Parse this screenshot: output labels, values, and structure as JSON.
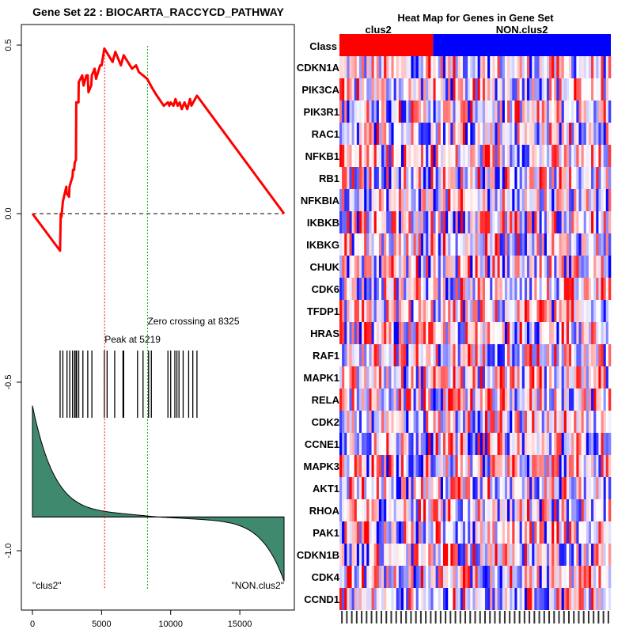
{
  "chart_data": [
    {
      "type": "line",
      "title": "Gene Set  22 : BIOCARTA_RACCYCD_PATHWAY",
      "xlim": [
        0,
        18500
      ],
      "ylim": [
        -1.07,
        0.53
      ],
      "x_ticks": [
        0,
        5000,
        10000,
        15000
      ],
      "x_tick_labels": [
        "0",
        "5000",
        "10000",
        "15000"
      ],
      "y_ticks": [
        0.5,
        0.0,
        -0.5,
        -1.0
      ],
      "y_tick_labels": [
        "0.5",
        "0.0",
        "-0.5",
        "-1.0"
      ],
      "colors": {
        "enrichment": "#ff0000",
        "peak_line": "#ff0000",
        "zero_line": "#00bb00",
        "ranked_fill": "#3f8a6e",
        "hits": "#000000",
        "baseline": "#000000"
      },
      "peak": {
        "x": 5219,
        "label": "Peak at 5219"
      },
      "zero_crossing": {
        "x": 8325,
        "label": "Zero crossing at 8325"
      },
      "hits_x": [
        2000,
        2200,
        2500,
        2700,
        2900,
        3050,
        3150,
        3200,
        3350,
        3650,
        4000,
        4300,
        5200,
        5400,
        5950,
        6550,
        6600,
        7600,
        8000,
        8400,
        8600,
        9800,
        10000,
        10300,
        10450,
        10600,
        10900,
        11300,
        11600,
        11900
      ],
      "enrichment_points": [
        [
          0,
          0.0
        ],
        [
          2000,
          -0.11
        ],
        [
          2050,
          0.0
        ],
        [
          2100,
          -0.01
        ],
        [
          2200,
          0.035
        ],
        [
          2450,
          0.08
        ],
        [
          2480,
          0.06
        ],
        [
          2650,
          0.05
        ],
        [
          2680,
          0.08
        ],
        [
          2900,
          0.11
        ],
        [
          2930,
          0.13
        ],
        [
          3020,
          0.13
        ],
        [
          3050,
          0.15
        ],
        [
          3150,
          0.16
        ],
        [
          3170,
          0.33
        ],
        [
          3330,
          0.33
        ],
        [
          3350,
          0.39
        ],
        [
          3600,
          0.41
        ],
        [
          3700,
          0.38
        ],
        [
          3900,
          0.41
        ],
        [
          4000,
          0.41
        ],
        [
          4050,
          0.36
        ],
        [
          4250,
          0.38
        ],
        [
          4300,
          0.41
        ],
        [
          4500,
          0.43
        ],
        [
          4600,
          0.4
        ],
        [
          4900,
          0.44
        ],
        [
          5000,
          0.44
        ],
        [
          5200,
          0.49
        ],
        [
          5500,
          0.47
        ],
        [
          5800,
          0.45
        ],
        [
          6000,
          0.48
        ],
        [
          6200,
          0.46
        ],
        [
          6400,
          0.44
        ],
        [
          6600,
          0.47
        ],
        [
          6900,
          0.45
        ],
        [
          7200,
          0.43
        ],
        [
          7500,
          0.44
        ],
        [
          7700,
          0.42
        ],
        [
          8000,
          0.41
        ],
        [
          8300,
          0.4
        ],
        [
          8700,
          0.37
        ],
        [
          9000,
          0.35
        ],
        [
          9500,
          0.32
        ],
        [
          9800,
          0.33
        ],
        [
          9900,
          0.32
        ],
        [
          10000,
          0.33
        ],
        [
          10200,
          0.32
        ],
        [
          10350,
          0.34
        ],
        [
          10500,
          0.32
        ],
        [
          10650,
          0.33
        ],
        [
          10800,
          0.31
        ],
        [
          11000,
          0.33
        ],
        [
          11200,
          0.31
        ],
        [
          11400,
          0.34
        ],
        [
          11500,
          0.32
        ],
        [
          11900,
          0.35
        ],
        [
          18200,
          0.0
        ]
      ],
      "ranked_metric": {
        "description": "ranked list metric (scaled)",
        "start_top": -0.605,
        "end_bottom": -1.07,
        "baseline": -0.9
      },
      "annotations": [
        "\"clus2\"",
        "\"NON.clus2\""
      ]
    },
    {
      "type": "heatmap",
      "title": "Heat Map for Genes in Gene Set",
      "class_label": "Class",
      "classes": [
        {
          "name": "clus2",
          "color": "#ff0000"
        },
        {
          "name": "NON.clus2",
          "color": "#0000ff"
        }
      ],
      "class_fraction": [
        0.345,
        0.655
      ],
      "genes": [
        "CDKN1A",
        "PIK3CA",
        "PIK3R1",
        "RAC1",
        "NFKB1",
        "RB1",
        "NFKBIA",
        "IKBKB",
        "IKBKG",
        "CHUK",
        "CDK6",
        "TFDP1",
        "HRAS",
        "RAF1",
        "MAPK1",
        "RELA",
        "CDK2",
        "CCNE1",
        "MAPK3",
        "AKT1",
        "RHOA",
        "PAK1",
        "CDKN1B",
        "CDK4",
        "CCND1"
      ],
      "sample_count": 110,
      "scale_colors": {
        "high": "#ff0000",
        "mid": "#ffffff",
        "low": "#0000ff"
      }
    }
  ]
}
